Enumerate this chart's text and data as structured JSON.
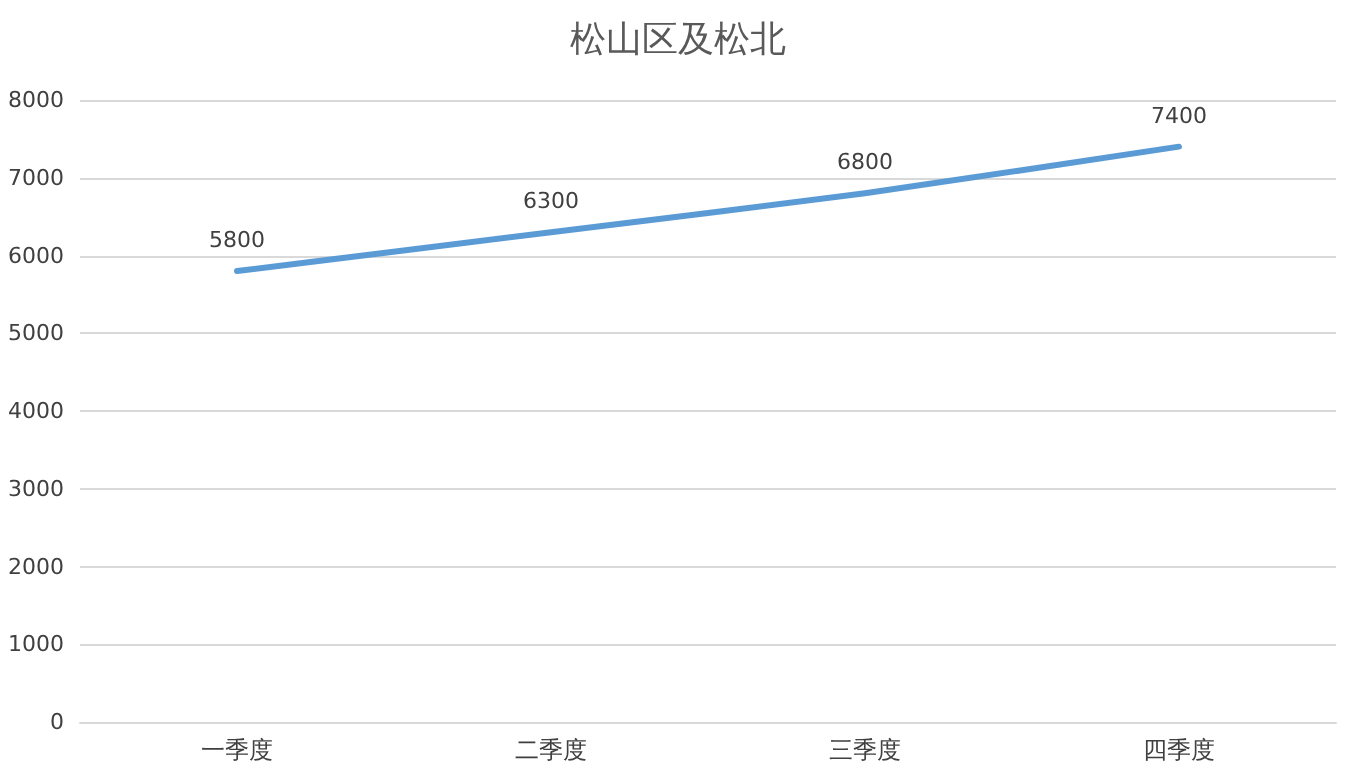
{
  "chart_data": {
    "type": "line",
    "title": "松山区及松北",
    "categories": [
      "一季度",
      "二季度",
      "三季度",
      "四季度"
    ],
    "series": [
      {
        "color": "#5b9bd5",
        "values": [
          5800,
          6300,
          6800,
          7400
        ]
      }
    ],
    "ylim": [
      0,
      8000
    ],
    "yticks": [
      0,
      1000,
      2000,
      3000,
      4000,
      5000,
      6000,
      7000,
      8000
    ],
    "grid": "y",
    "data_labels": true,
    "marker": "none",
    "line_style": "solid"
  }
}
